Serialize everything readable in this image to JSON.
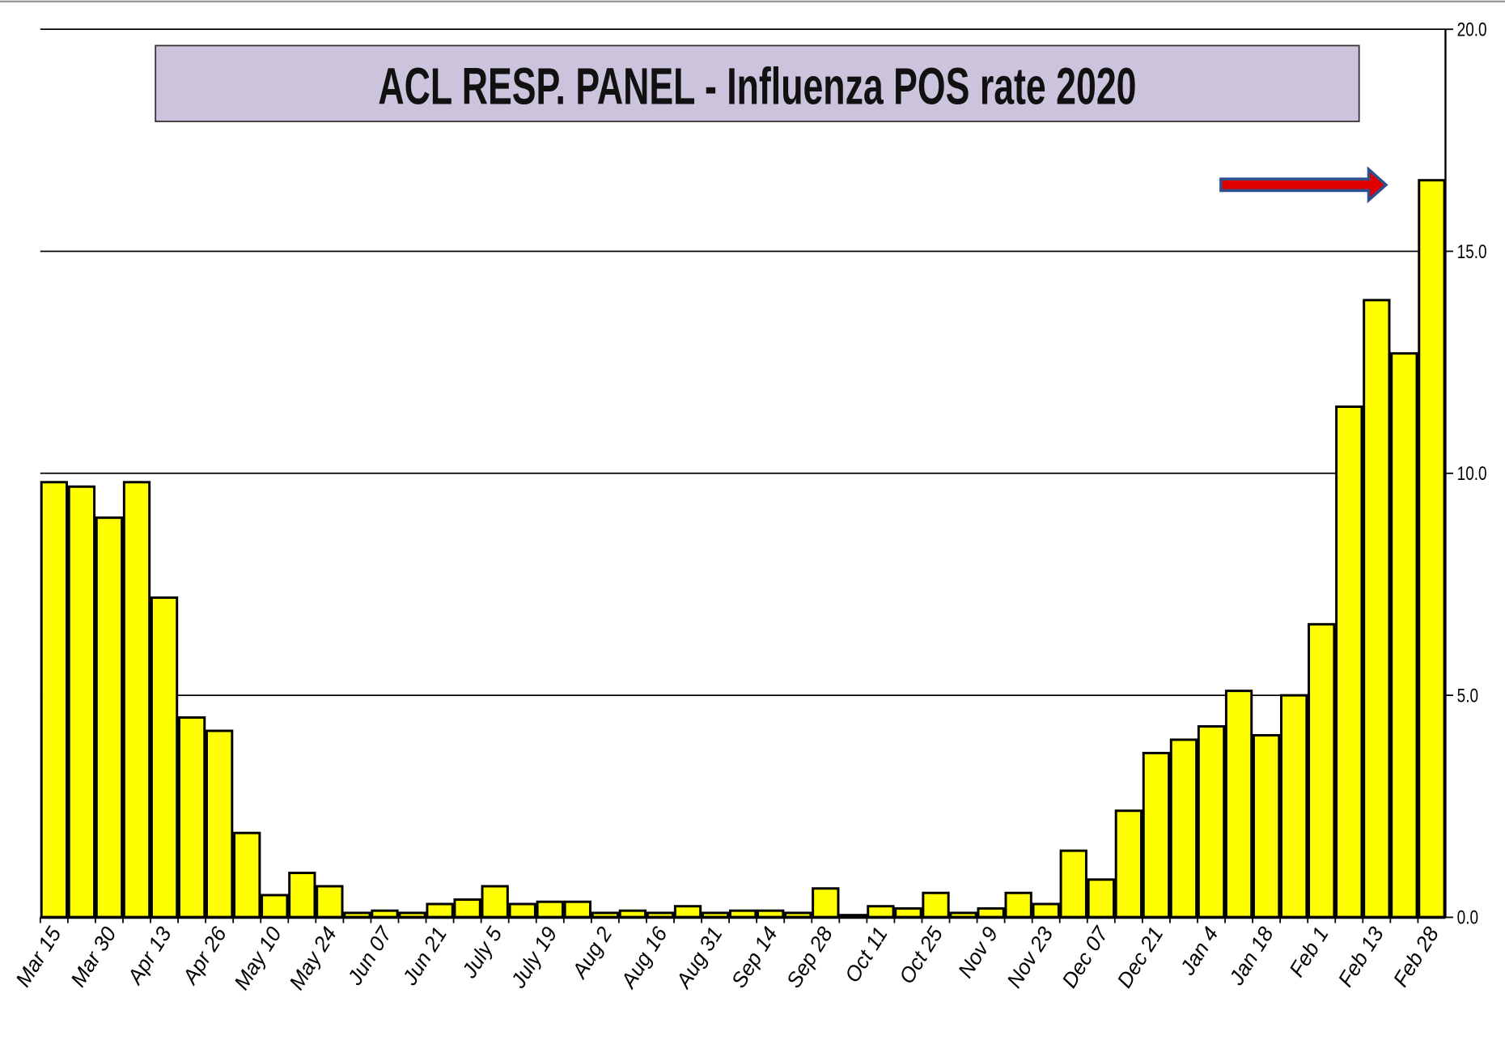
{
  "chart_data": {
    "type": "bar",
    "title": "ACL RESP. PANEL -  Influenza POS rate  2020",
    "categories": [
      "Mar 15",
      null,
      "Mar 30",
      null,
      "Apr 13",
      null,
      "Apr 26",
      null,
      "May 10",
      null,
      "May 24",
      null,
      "Jun 07",
      null,
      "Jun 21",
      null,
      "July 5",
      null,
      "July 19",
      null,
      "Aug 2",
      null,
      "Aug 16",
      null,
      "Aug 31",
      null,
      "Sep 14",
      null,
      "Sep 28",
      null,
      "Oct 11",
      null,
      "Oct 25",
      null,
      "Nov 9",
      null,
      "Nov 23",
      null,
      "Dec 07",
      null,
      "Dec 21",
      null,
      "Jan 4",
      null,
      "Jan 18",
      null,
      "Feb 1",
      null,
      "Feb 13",
      null,
      "Feb 28"
    ],
    "values": [
      9.8,
      9.7,
      9.0,
      9.8,
      7.2,
      4.5,
      4.2,
      1.9,
      0.5,
      1.0,
      0.7,
      0.1,
      0.15,
      0.1,
      0.3,
      0.4,
      0.7,
      0.3,
      0.35,
      0.35,
      0.1,
      0.15,
      0.1,
      0.25,
      0.1,
      0.15,
      0.15,
      0.1,
      0.65,
      0.05,
      0.25,
      0.2,
      0.55,
      0.1,
      0.2,
      0.55,
      0.3,
      1.5,
      0.85,
      2.4,
      3.7,
      4.0,
      4.3,
      5.1,
      4.1,
      5.0,
      6.6,
      11.5,
      13.9,
      12.7,
      16.6
    ],
    "color": "#ffff00",
    "ylim": [
      0,
      20
    ],
    "yticks": [
      {
        "value": 0,
        "label": "0.0"
      },
      {
        "value": 5,
        "label": "5.0"
      },
      {
        "value": 10,
        "label": "10.0"
      },
      {
        "value": 15,
        "label": "15.0"
      },
      {
        "value": 20,
        "label": "20.0"
      }
    ],
    "grid": true
  }
}
